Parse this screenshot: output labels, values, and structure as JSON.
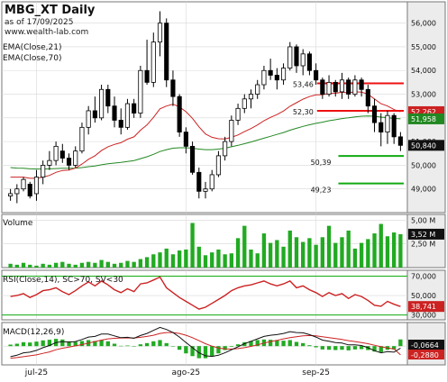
{
  "header": {
    "title": "MBG_XT Daily",
    "date_line": "as of 17/09/2025",
    "site": "www.wealth-lab.com",
    "ema_short_label": "EMA(Close,21)",
    "ema_long_label": "EMA(Close,70)"
  },
  "x_labels": [
    {
      "label": "jul-25",
      "index": 4
    },
    {
      "label": "ago-25",
      "index": 27
    },
    {
      "label": "sep-25",
      "index": 47
    }
  ],
  "colors": {
    "up": "#ffffff",
    "down": "#000000",
    "ema_short": "#cc2222",
    "ema_long": "#228822",
    "resistance": "#ee1111",
    "support": "#11aa11",
    "volume": "#22aa22",
    "rsi": "#cc2222",
    "macd": "#111111",
    "macd_signal": "#cc2222",
    "macd_hist": "#22aa22",
    "panel_bg": "#ffffff",
    "axis_bg": "#ececec",
    "grid": "#d8d8d8"
  },
  "chart_data": [
    {
      "type": "candlestick",
      "title": "MBG_XT Daily",
      "y_ticks": [
        49.0,
        50.0,
        51.0,
        52.0,
        53.0,
        54.0,
        55.0,
        56.0
      ],
      "y_tick_labels": [
        "49,000",
        "50,000",
        "51,000",
        "52,000",
        "53,000",
        "54,000",
        "55,000",
        "56,000"
      ],
      "ylim": [
        48.0,
        56.9
      ],
      "ohlc": [
        [
          48.7,
          49.0,
          48.5,
          48.8
        ],
        [
          48.8,
          49.2,
          48.4,
          49.0
        ],
        [
          49.0,
          49.5,
          48.9,
          49.4
        ],
        [
          49.2,
          49.3,
          48.6,
          48.7
        ],
        [
          48.8,
          49.8,
          48.5,
          49.5
        ],
        [
          49.5,
          50.2,
          49.2,
          50.0
        ],
        [
          50.0,
          50.6,
          49.8,
          50.2
        ],
        [
          50.2,
          51.0,
          50.0,
          50.8
        ],
        [
          50.6,
          50.9,
          50.1,
          50.3
        ],
        [
          50.3,
          50.5,
          49.8,
          50.0
        ],
        [
          50.0,
          50.8,
          49.9,
          50.6
        ],
        [
          50.6,
          51.8,
          50.5,
          51.6
        ],
        [
          51.6,
          52.5,
          51.3,
          52.3
        ],
        [
          52.3,
          52.9,
          51.8,
          52.0
        ],
        [
          52.0,
          53.4,
          51.9,
          53.2
        ],
        [
          53.2,
          53.4,
          52.2,
          52.5
        ],
        [
          52.5,
          52.9,
          51.6,
          51.9
        ],
        [
          51.9,
          52.4,
          51.3,
          51.6
        ],
        [
          51.6,
          52.8,
          51.5,
          52.6
        ],
        [
          52.6,
          52.8,
          52.0,
          52.2
        ],
        [
          52.2,
          54.2,
          52.0,
          54.0
        ],
        [
          54.0,
          55.3,
          53.4,
          53.5
        ],
        [
          53.5,
          55.6,
          53.3,
          55.2
        ],
        [
          55.2,
          56.5,
          54.6,
          56.0
        ],
        [
          56.0,
          56.2,
          53.3,
          53.6
        ],
        [
          53.6,
          54.0,
          52.5,
          52.9
        ],
        [
          52.9,
          53.0,
          51.2,
          51.4
        ],
        [
          51.4,
          51.6,
          50.5,
          50.8
        ],
        [
          50.8,
          51.0,
          49.6,
          49.7
        ],
        [
          49.7,
          49.9,
          48.6,
          48.9
        ],
        [
          48.9,
          49.3,
          48.6,
          49.0
        ],
        [
          49.0,
          49.8,
          48.9,
          49.6
        ],
        [
          49.6,
          50.6,
          49.5,
          50.4
        ],
        [
          50.4,
          51.2,
          50.2,
          51.0
        ],
        [
          51.0,
          52.1,
          50.8,
          51.9
        ],
        [
          51.9,
          52.6,
          51.7,
          52.4
        ],
        [
          52.4,
          53.0,
          52.2,
          52.8
        ],
        [
          52.8,
          53.2,
          52.4,
          53.0
        ],
        [
          53.0,
          53.6,
          52.8,
          53.4
        ],
        [
          53.4,
          54.2,
          53.2,
          54.0
        ],
        [
          54.0,
          54.5,
          53.6,
          53.8
        ],
        [
          53.8,
          54.1,
          53.2,
          53.6
        ],
        [
          53.6,
          54.3,
          53.4,
          54.1
        ],
        [
          54.1,
          55.2,
          54.0,
          55.0
        ],
        [
          55.0,
          55.1,
          53.9,
          54.2
        ],
        [
          54.2,
          54.9,
          53.8,
          54.7
        ],
        [
          54.7,
          54.8,
          53.8,
          54.0
        ],
        [
          54.0,
          54.3,
          53.4,
          53.6
        ],
        [
          53.6,
          53.7,
          52.8,
          53.0
        ],
        [
          53.0,
          53.8,
          52.9,
          53.5
        ],
        [
          53.5,
          53.6,
          52.9,
          53.1
        ],
        [
          53.1,
          53.9,
          52.8,
          53.6
        ],
        [
          53.6,
          53.7,
          52.8,
          53.0
        ],
        [
          53.0,
          53.8,
          52.9,
          53.6
        ],
        [
          53.6,
          53.7,
          52.9,
          53.2
        ],
        [
          53.2,
          53.4,
          52.2,
          52.5
        ],
        [
          52.5,
          52.8,
          51.4,
          51.8
        ],
        [
          51.8,
          52.2,
          50.8,
          51.4
        ],
        [
          51.4,
          52.3,
          50.9,
          52.1
        ],
        [
          52.1,
          52.2,
          50.9,
          51.2
        ],
        [
          51.2,
          51.4,
          50.6,
          50.84
        ]
      ],
      "ema21": [
        49.5,
        49.5,
        49.5,
        49.45,
        49.45,
        49.5,
        49.57,
        49.7,
        49.78,
        49.8,
        49.88,
        50.05,
        50.25,
        50.4,
        50.62,
        50.78,
        50.88,
        50.95,
        51.1,
        51.2,
        51.48,
        51.7,
        52.02,
        52.38,
        52.5,
        52.58,
        52.46,
        52.26,
        51.98,
        51.62,
        51.32,
        51.18,
        51.12,
        51.11,
        51.18,
        51.28,
        51.42,
        51.55,
        51.7,
        51.88,
        52.02,
        52.14,
        52.29,
        52.49,
        52.64,
        52.79,
        52.9,
        52.97,
        52.98,
        53.03,
        53.04,
        53.08,
        53.06,
        53.1,
        53.09,
        53.0,
        52.8,
        52.6,
        52.5,
        52.35,
        52.26
      ],
      "ema70": [
        49.9,
        49.88,
        49.87,
        49.85,
        49.84,
        49.84,
        49.85,
        49.86,
        49.87,
        49.87,
        49.88,
        49.9,
        49.94,
        49.97,
        50.02,
        50.06,
        50.09,
        50.12,
        50.16,
        50.2,
        50.28,
        50.36,
        50.46,
        50.58,
        50.66,
        50.72,
        50.74,
        50.74,
        50.72,
        50.68,
        50.66,
        50.66,
        50.68,
        50.72,
        50.78,
        50.84,
        50.91,
        50.98,
        51.06,
        51.14,
        51.22,
        51.3,
        51.38,
        51.48,
        51.56,
        51.64,
        51.71,
        51.77,
        51.82,
        51.88,
        51.92,
        51.97,
        52.0,
        52.04,
        52.07,
        52.08,
        52.07,
        52.03,
        52.01,
        51.98,
        51.958
      ],
      "support_levels": [
        {
          "label": "50,39",
          "value": 50.39,
          "from_index": 51
        },
        {
          "label": "49,23",
          "value": 49.23,
          "from_index": 51
        }
      ],
      "resistance_levels": [
        {
          "label": "53,46",
          "value": 53.46,
          "from_index": 48
        },
        {
          "label": "52,30",
          "value": 52.3,
          "from_index": 48
        }
      ],
      "last_value_tags": [
        {
          "label": "52,262",
          "value": 52.262,
          "color": "#cc2222",
          "text_color": "#ffffff"
        },
        {
          "label": "51,958",
          "value": 51.958,
          "color": "#228822",
          "text_color": "#ffffff"
        },
        {
          "label": "50,840",
          "value": 50.84,
          "color": "#111111",
          "text_color": "#ffffff"
        }
      ]
    },
    {
      "type": "bar",
      "title": "Volume",
      "unit_labels": [
        "5,00 M",
        "2,50 M"
      ],
      "unit_values": [
        5.0,
        2.5
      ],
      "ylim": [
        0,
        5.6
      ],
      "last_label": "3,52 M",
      "values": [
        0.4,
        0.3,
        0.5,
        0.3,
        0.2,
        0.4,
        0.3,
        0.5,
        0.6,
        0.4,
        0.3,
        0.5,
        0.6,
        0.5,
        0.8,
        0.6,
        0.4,
        0.5,
        0.7,
        0.6,
        0.9,
        1.1,
        1.4,
        1.6,
        2.0,
        1.4,
        1.8,
        1.9,
        4.7,
        2.2,
        1.3,
        1.6,
        1.9,
        1.4,
        1.5,
        3.1,
        4.4,
        1.9,
        1.5,
        3.6,
        2.6,
        2.9,
        2.2,
        3.9,
        3.2,
        2.7,
        3.1,
        2.4,
        3.2,
        4.4,
        2.6,
        3.2,
        3.9,
        2.0,
        2.6,
        3.0,
        3.6,
        4.6,
        3.3,
        3.7,
        3.52
      ]
    },
    {
      "type": "line",
      "title": "RSI(Close,14), SC>70, SV<30",
      "y_ticks": [
        70.0,
        50.0,
        30.0
      ],
      "y_tick_labels": [
        "70,000",
        "50,000",
        "30,000"
      ],
      "ylim": [
        25,
        76
      ],
      "last_label": "38,741",
      "values": [
        49,
        50,
        52,
        48,
        51,
        55,
        56,
        58,
        54,
        51,
        55,
        60,
        64,
        60,
        65,
        61,
        56,
        53,
        57,
        54,
        62,
        63,
        66,
        69,
        58,
        53,
        48,
        44,
        40,
        36,
        38,
        42,
        46,
        50,
        55,
        58,
        60,
        61,
        63,
        65,
        62,
        60,
        62,
        65,
        58,
        60,
        56,
        53,
        49,
        53,
        50,
        52,
        47,
        51,
        49,
        45,
        40,
        39,
        44,
        41,
        38.741
      ]
    },
    {
      "type": "line",
      "title": "MACD(12,26,9)",
      "y_ticks": [
        0.0
      ],
      "ylim": [
        -0.62,
        0.78
      ],
      "last_labels": [
        {
          "label": "-0,0664",
          "value": -0.0664,
          "color": "#111111",
          "text_color": "#ffffff"
        },
        {
          "label": "-0,2880",
          "value": -0.288,
          "color": "#cc2222",
          "text_color": "#ffffff"
        }
      ],
      "macd": [
        -0.35,
        -0.3,
        -0.22,
        -0.2,
        -0.14,
        -0.05,
        0.02,
        0.12,
        0.15,
        0.13,
        0.15,
        0.22,
        0.3,
        0.32,
        0.4,
        0.4,
        0.34,
        0.28,
        0.29,
        0.26,
        0.35,
        0.42,
        0.52,
        0.62,
        0.55,
        0.45,
        0.3,
        0.12,
        -0.05,
        -0.22,
        -0.32,
        -0.34,
        -0.3,
        -0.22,
        -0.12,
        -0.02,
        0.08,
        0.16,
        0.24,
        0.32,
        0.36,
        0.38,
        0.42,
        0.48,
        0.45,
        0.44,
        0.38,
        0.3,
        0.2,
        0.16,
        0.12,
        0.1,
        0.04,
        0.04,
        0.02,
        -0.05,
        -0.15,
        -0.22,
        -0.18,
        -0.2,
        -0.0664
      ],
      "signal": [
        -0.4,
        -0.38,
        -0.35,
        -0.32,
        -0.29,
        -0.24,
        -0.19,
        -0.12,
        -0.07,
        -0.03,
        0.01,
        0.05,
        0.1,
        0.15,
        0.2,
        0.24,
        0.26,
        0.27,
        0.27,
        0.27,
        0.29,
        0.32,
        0.36,
        0.42,
        0.45,
        0.45,
        0.42,
        0.36,
        0.28,
        0.18,
        0.08,
        0.0,
        -0.06,
        -0.09,
        -0.1,
        -0.08,
        -0.05,
        -0.01,
        0.04,
        0.1,
        0.15,
        0.19,
        0.24,
        0.28,
        0.31,
        0.34,
        0.35,
        0.34,
        0.31,
        0.28,
        0.25,
        0.22,
        0.18,
        0.15,
        0.12,
        0.08,
        0.03,
        -0.02,
        -0.06,
        -0.09,
        -0.288
      ]
    }
  ]
}
